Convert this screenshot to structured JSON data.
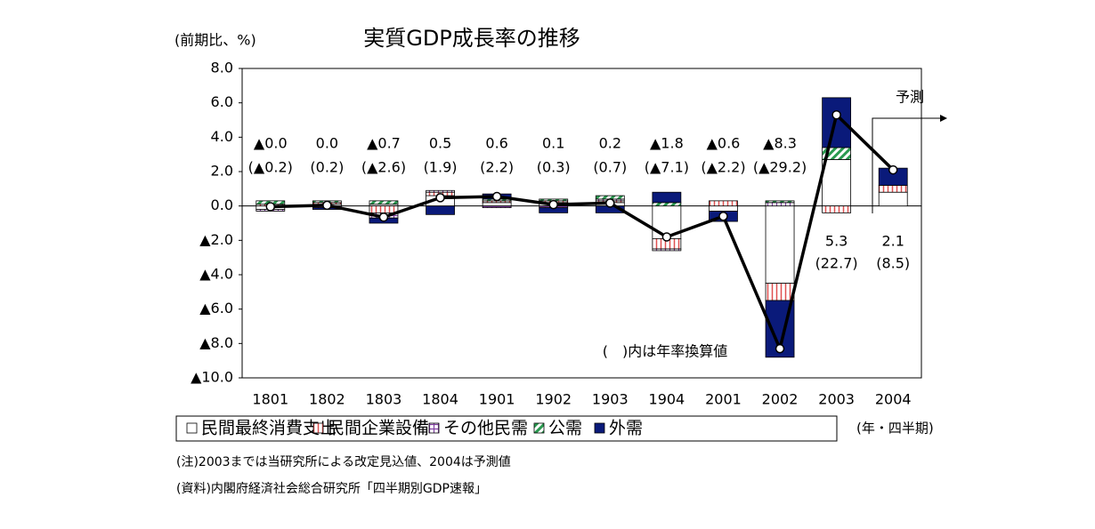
{
  "chart_data": {
    "type": "stacked-bar-line",
    "title": "実質GDP成長率の推移",
    "y_axis_label": "(前期比、%)",
    "x_axis_label": "(年・四半期)",
    "annotation": "(　)内は年率換算値",
    "forecast_label": "予測",
    "notes": [
      "(注)2003までは当研究所による改定見込値、2004は予測値",
      "(資料)内閣府経済社会総合研究所「四半期別GDP速報」"
    ],
    "categories": [
      "1801",
      "1802",
      "1803",
      "1804",
      "1901",
      "1902",
      "1903",
      "1904",
      "2001",
      "2002",
      "2003",
      "2004"
    ],
    "series": [
      {
        "name": "民間最終消費支出",
        "color": "#ffffff",
        "pattern": "none",
        "values": [
          -0.2,
          0.1,
          0.1,
          0.6,
          0.2,
          0.2,
          0.2,
          -1.9,
          -0.3,
          -4.5,
          2.7,
          0.8
        ]
      },
      {
        "name": "民間企業設備",
        "color": "#e05050",
        "pattern": "vertical",
        "values": [
          0.1,
          0.1,
          -0.4,
          0.2,
          0.1,
          0.1,
          0.1,
          -0.6,
          0.3,
          -1.0,
          -0.4,
          0.4
        ]
      },
      {
        "name": "その他民需",
        "color": "#8040a0",
        "pattern": "grid",
        "values": [
          -0.1,
          -0.1,
          -0.3,
          0.1,
          -0.1,
          -0.1,
          0.1,
          -0.1,
          0.0,
          0.2,
          0.0,
          0.0
        ]
      },
      {
        "name": "公需",
        "color": "#2a9a50",
        "pattern": "diagonal",
        "values": [
          0.2,
          0.1,
          0.2,
          0.0,
          0.1,
          0.1,
          0.2,
          0.2,
          0.0,
          0.1,
          0.7,
          0.0
        ]
      },
      {
        "name": "外需",
        "color": "#0a1a7a",
        "pattern": "solid",
        "values": [
          0.0,
          -0.1,
          -0.3,
          -0.5,
          0.3,
          -0.3,
          -0.4,
          0.6,
          -0.6,
          -3.3,
          2.9,
          1.0
        ]
      }
    ],
    "line": {
      "name": "GDP",
      "color": "#000000",
      "values": [
        -0.04,
        0.04,
        -0.65,
        0.48,
        0.55,
        0.08,
        0.17,
        -1.8,
        -0.6,
        -8.3,
        5.3,
        2.1
      ],
      "value_labels": [
        "▲0.0",
        "0.0",
        "▲0.7",
        "0.5",
        "0.6",
        "0.1",
        "0.2",
        "▲1.8",
        "▲0.6",
        "▲8.3",
        "5.3",
        "2.1"
      ],
      "annual_labels": [
        "(▲0.2)",
        "(0.2)",
        "(▲2.6)",
        "(1.9)",
        "(2.2)",
        "(0.3)",
        "(0.7)",
        "(▲7.1)",
        "(▲2.2)",
        "(▲29.2)",
        "(22.7)",
        "(8.5)"
      ]
    },
    "ylim": [
      -10,
      8
    ],
    "yticks": [
      {
        "value": -10,
        "label": "▲10.0"
      },
      {
        "value": -8,
        "label": "▲8.0"
      },
      {
        "value": -6,
        "label": "▲6.0"
      },
      {
        "value": -4,
        "label": "▲4.0"
      },
      {
        "value": -2,
        "label": "▲2.0"
      },
      {
        "value": 0,
        "label": "0.0"
      },
      {
        "value": 2,
        "label": "2.0"
      },
      {
        "value": 4,
        "label": "4.0"
      },
      {
        "value": 6,
        "label": "6.0"
      },
      {
        "value": 8,
        "label": "8.0"
      }
    ]
  }
}
